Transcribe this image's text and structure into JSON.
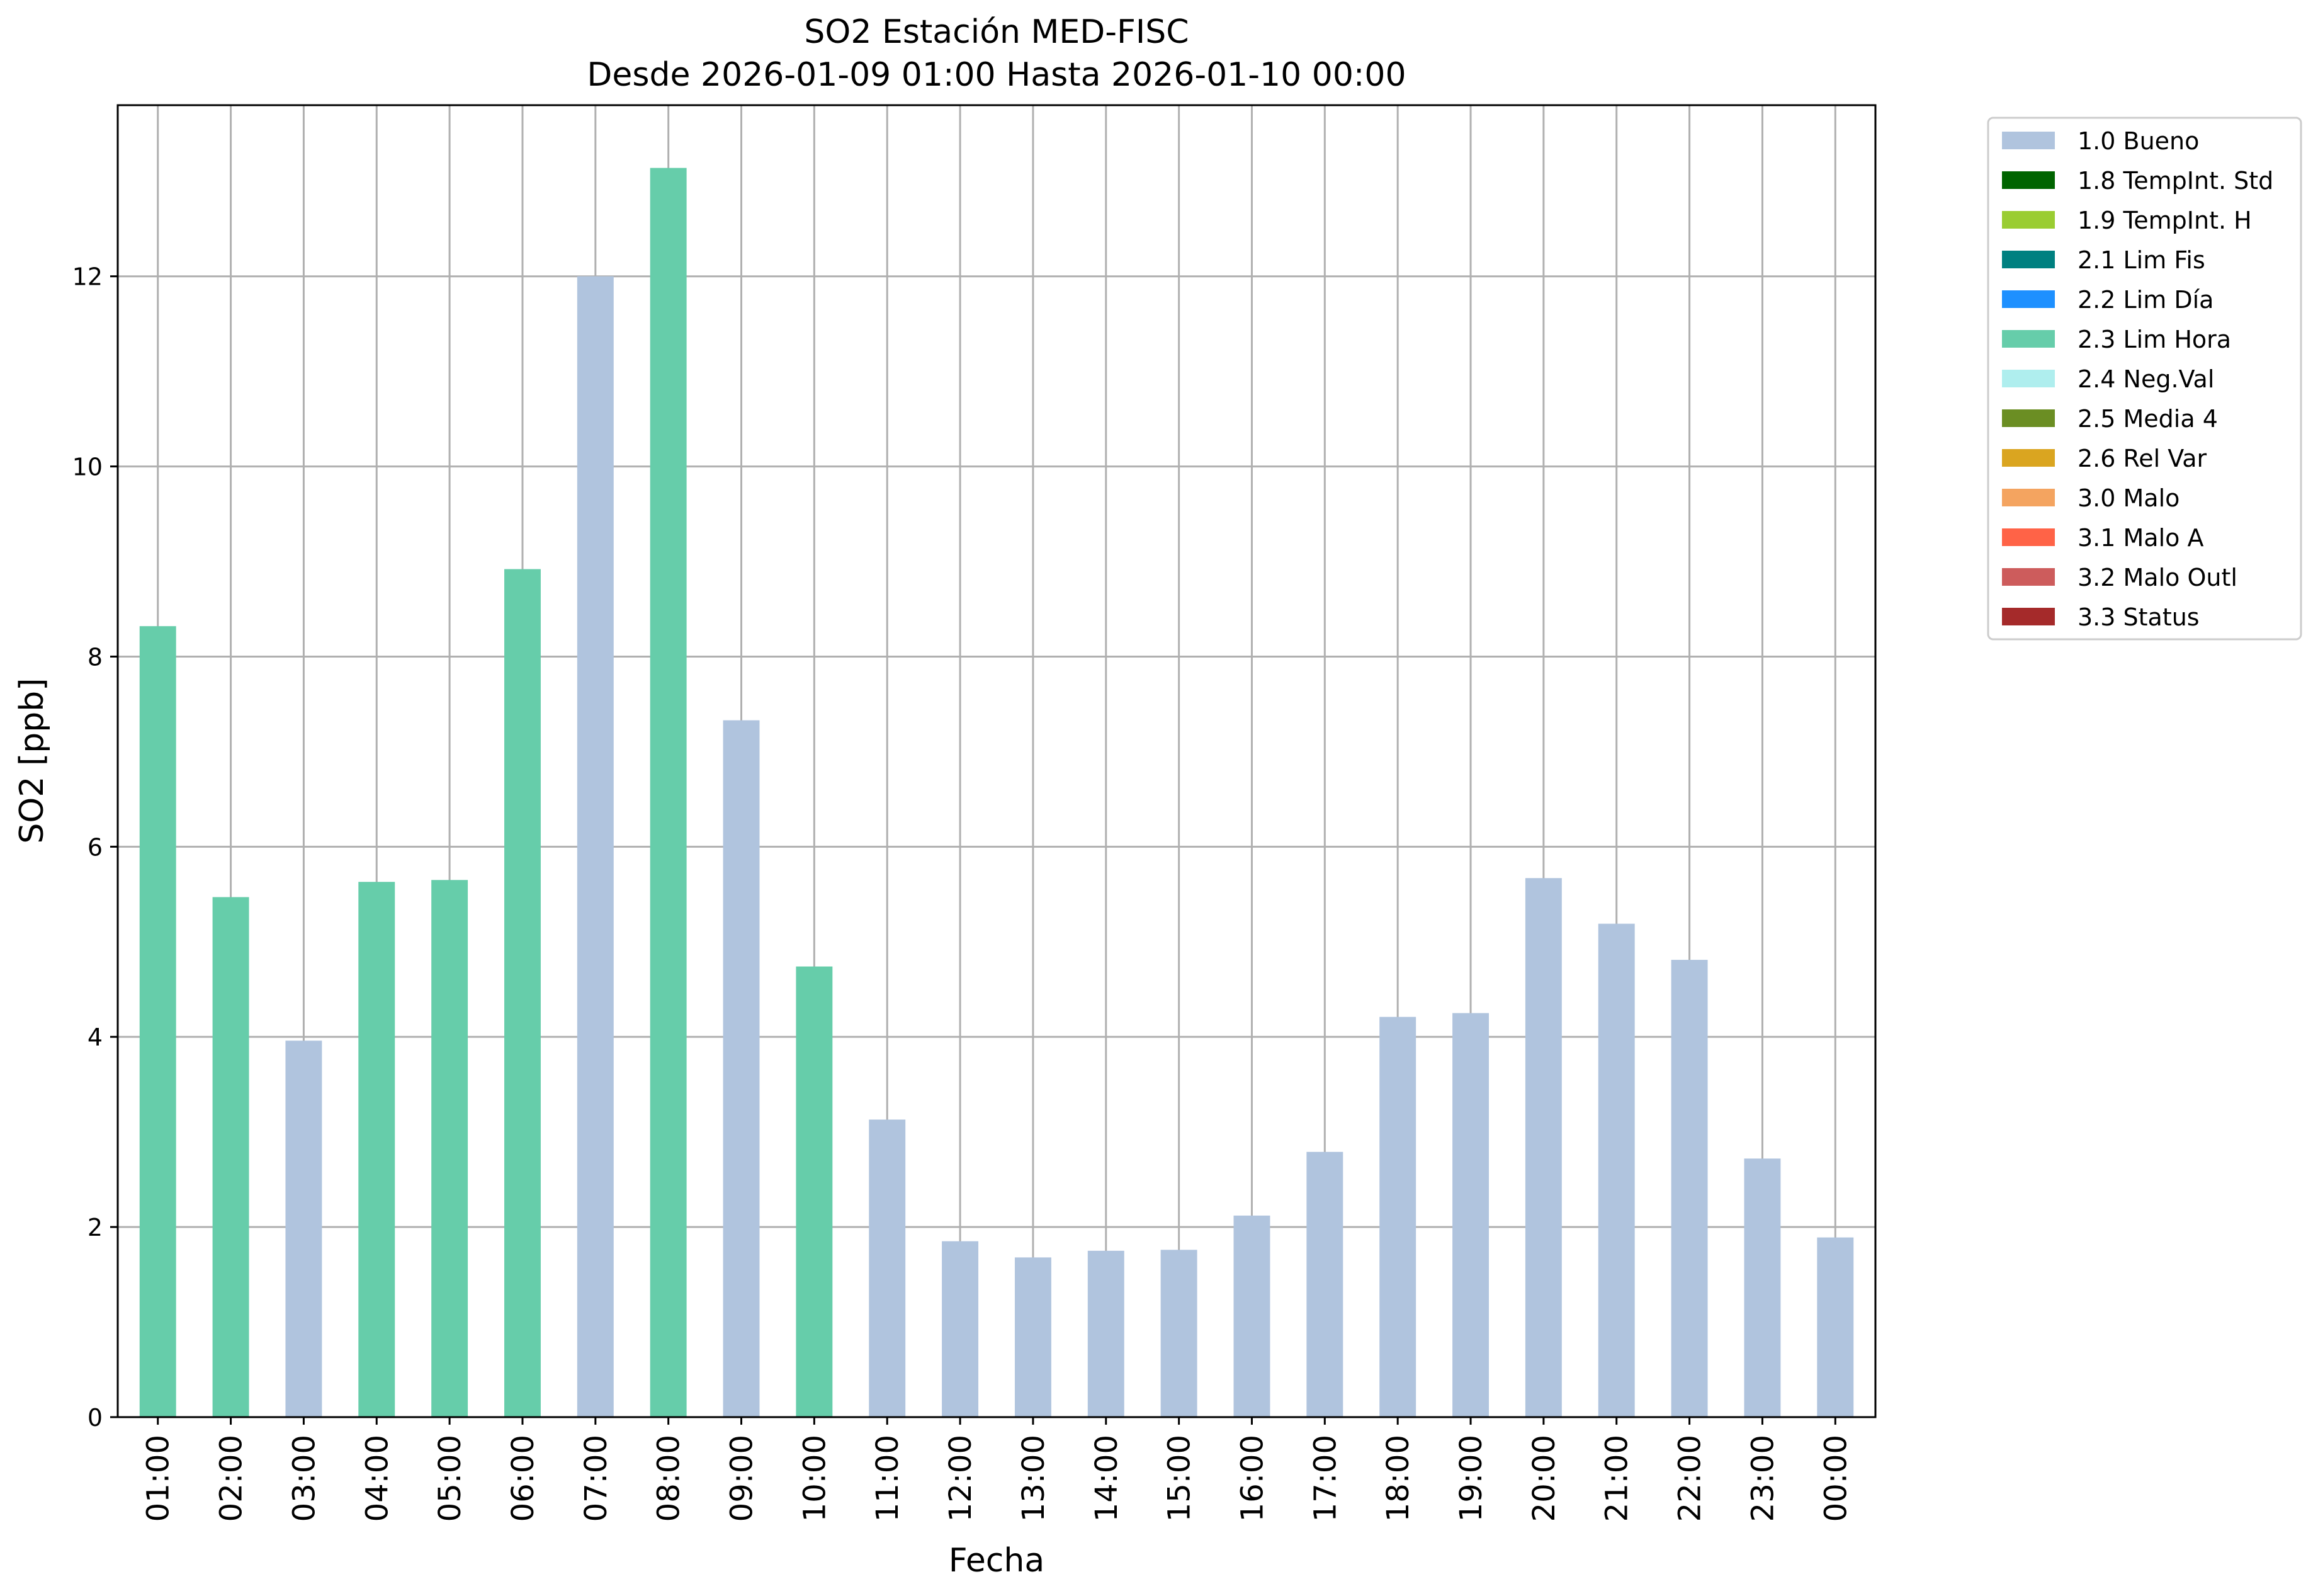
{
  "chart_data": {
    "type": "bar",
    "title": "SO2 Estación MED-FISC",
    "subtitle": "Desde 2026-01-09 01:00 Hasta 2026-01-10 00:00",
    "xlabel": "Fecha",
    "ylabel": "SO2 [ppb]",
    "ylim": [
      0,
      13.8
    ],
    "yticks": [
      0,
      2,
      4,
      6,
      8,
      10,
      12
    ],
    "grid": true,
    "legend_position": "outside top-right",
    "categories": [
      "01:00",
      "02:00",
      "03:00",
      "04:00",
      "05:00",
      "06:00",
      "07:00",
      "08:00",
      "09:00",
      "10:00",
      "11:00",
      "12:00",
      "13:00",
      "14:00",
      "15:00",
      "16:00",
      "17:00",
      "18:00",
      "19:00",
      "20:00",
      "21:00",
      "22:00",
      "23:00",
      "00:00"
    ],
    "values": [
      8.32,
      5.47,
      3.96,
      5.63,
      5.65,
      8.92,
      12.0,
      13.14,
      7.33,
      4.74,
      3.13,
      1.85,
      1.68,
      1.75,
      1.76,
      2.12,
      2.79,
      4.21,
      4.25,
      5.67,
      5.19,
      4.81,
      2.72,
      1.89
    ],
    "flags": [
      "2.3 Lim Hora",
      "2.3 Lim Hora",
      "1.0 Bueno",
      "2.3 Lim Hora",
      "2.3 Lim Hora",
      "2.3 Lim Hora",
      "1.0 Bueno",
      "2.3 Lim Hora",
      "1.0 Bueno",
      "2.3 Lim Hora",
      "1.0 Bueno",
      "1.0 Bueno",
      "1.0 Bueno",
      "1.0 Bueno",
      "1.0 Bueno",
      "1.0 Bueno",
      "1.0 Bueno",
      "1.0 Bueno",
      "1.0 Bueno",
      "1.0 Bueno",
      "1.0 Bueno",
      "1.0 Bueno",
      "1.0 Bueno",
      "1.0 Bueno"
    ],
    "legend": [
      {
        "label": "1.0 Bueno",
        "color": "#b0c4de"
      },
      {
        "label": "1.8 TempInt. Std",
        "color": "#006400"
      },
      {
        "label": "1.9 TempInt. H",
        "color": "#9acd32"
      },
      {
        "label": "2.1 Lim Fis",
        "color": "#008080"
      },
      {
        "label": "2.2 Lim Día",
        "color": "#1e90ff"
      },
      {
        "label": "2.3 Lim Hora",
        "color": "#66cdaa"
      },
      {
        "label": "2.4 Neg.Val",
        "color": "#afeeee"
      },
      {
        "label": "2.5 Media 4",
        "color": "#6b8e23"
      },
      {
        "label": "2.6 Rel Var",
        "color": "#daa520"
      },
      {
        "label": "3.0 Malo",
        "color": "#f4a460"
      },
      {
        "label": "3.1 Malo A",
        "color": "#ff6347"
      },
      {
        "label": "3.2 Malo Outl",
        "color": "#cd5c5c"
      },
      {
        "label": "3.3 Status",
        "color": "#a52a2a"
      }
    ]
  }
}
